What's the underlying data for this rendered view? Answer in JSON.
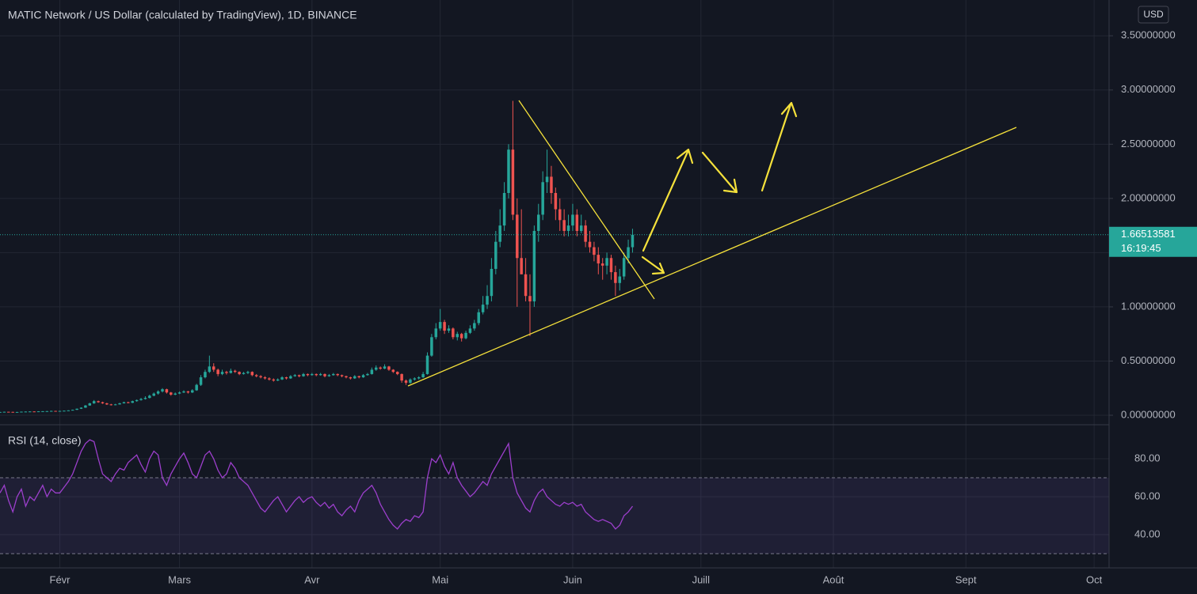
{
  "chart_data": {
    "type": "candlestick",
    "title": "MATIC Network / US Dollar (calculated by TradingView), 1D, BINANCE",
    "currency": "USD",
    "up_color": "#26a69a",
    "down_color": "#ef5350",
    "xlim": [
      0,
      259.5
    ],
    "xticks": [
      {
        "value": 14,
        "label": "Févr"
      },
      {
        "value": 42,
        "label": "Mars"
      },
      {
        "value": 73,
        "label": "Avr"
      },
      {
        "value": 103,
        "label": "Mai"
      },
      {
        "value": 134,
        "label": "Juin"
      },
      {
        "value": 164,
        "label": "Juill"
      },
      {
        "value": 195,
        "label": "Août"
      },
      {
        "value": 226,
        "label": "Sept"
      },
      {
        "value": 256,
        "label": "Oct"
      }
    ],
    "ylim": [
      -0.0875,
      3.83
    ],
    "yticks": [
      {
        "value": 0,
        "label": "0.00000000"
      },
      {
        "value": 0.5,
        "label": "0.50000000"
      },
      {
        "value": 1,
        "label": "1.00000000"
      },
      {
        "value": 1.5,
        "label": "1.50000000"
      },
      {
        "value": 2,
        "label": "2.00000000"
      },
      {
        "value": 2.5,
        "label": "2.50000000"
      },
      {
        "value": 3,
        "label": "3.00000000"
      },
      {
        "value": 3.5,
        "label": "3.50000000"
      }
    ],
    "grid": true,
    "countdown": "16:19:45",
    "candles": [
      [
        0.029,
        0.031,
        0.028,
        0.03
      ],
      [
        0.03,
        0.033,
        0.029,
        0.032
      ],
      [
        0.032,
        0.033,
        0.03,
        0.031
      ],
      [
        0.031,
        0.032,
        0.028,
        0.029
      ],
      [
        0.029,
        0.031,
        0.028,
        0.03
      ],
      [
        0.03,
        0.034,
        0.029,
        0.033
      ],
      [
        0.033,
        0.035,
        0.032,
        0.034
      ],
      [
        0.034,
        0.036,
        0.033,
        0.035
      ],
      [
        0.035,
        0.036,
        0.033,
        0.034
      ],
      [
        0.034,
        0.037,
        0.033,
        0.036
      ],
      [
        0.036,
        0.038,
        0.035,
        0.037
      ],
      [
        0.037,
        0.039,
        0.036,
        0.038
      ],
      [
        0.038,
        0.042,
        0.037,
        0.04
      ],
      [
        0.04,
        0.041,
        0.038,
        0.039
      ],
      [
        0.039,
        0.041,
        0.038,
        0.04
      ],
      [
        0.04,
        0.043,
        0.039,
        0.042
      ],
      [
        0.042,
        0.046,
        0.041,
        0.045
      ],
      [
        0.045,
        0.052,
        0.044,
        0.05
      ],
      [
        0.05,
        0.062,
        0.049,
        0.06
      ],
      [
        0.06,
        0.073,
        0.058,
        0.07
      ],
      [
        0.07,
        0.094,
        0.068,
        0.09
      ],
      [
        0.09,
        0.115,
        0.088,
        0.11
      ],
      [
        0.11,
        0.14,
        0.105,
        0.13
      ],
      [
        0.13,
        0.135,
        0.115,
        0.12
      ],
      [
        0.12,
        0.125,
        0.105,
        0.11
      ],
      [
        0.11,
        0.115,
        0.095,
        0.1
      ],
      [
        0.1,
        0.105,
        0.09,
        0.095
      ],
      [
        0.095,
        0.105,
        0.092,
        0.1
      ],
      [
        0.1,
        0.115,
        0.098,
        0.11
      ],
      [
        0.11,
        0.125,
        0.108,
        0.12
      ],
      [
        0.12,
        0.125,
        0.11,
        0.115
      ],
      [
        0.115,
        0.135,
        0.112,
        0.13
      ],
      [
        0.13,
        0.145,
        0.125,
        0.14
      ],
      [
        0.14,
        0.16,
        0.135,
        0.15
      ],
      [
        0.15,
        0.175,
        0.145,
        0.16
      ],
      [
        0.16,
        0.19,
        0.155,
        0.18
      ],
      [
        0.18,
        0.21,
        0.175,
        0.2
      ],
      [
        0.2,
        0.23,
        0.19,
        0.22
      ],
      [
        0.22,
        0.25,
        0.21,
        0.24
      ],
      [
        0.24,
        0.245,
        0.2,
        0.21
      ],
      [
        0.21,
        0.215,
        0.18,
        0.19
      ],
      [
        0.19,
        0.21,
        0.185,
        0.2
      ],
      [
        0.2,
        0.22,
        0.195,
        0.21
      ],
      [
        0.21,
        0.23,
        0.205,
        0.22
      ],
      [
        0.22,
        0.225,
        0.2,
        0.21
      ],
      [
        0.21,
        0.24,
        0.205,
        0.23
      ],
      [
        0.23,
        0.29,
        0.225,
        0.28
      ],
      [
        0.28,
        0.37,
        0.27,
        0.35
      ],
      [
        0.35,
        0.42,
        0.34,
        0.4
      ],
      [
        0.4,
        0.55,
        0.39,
        0.45
      ],
      [
        0.45,
        0.48,
        0.4,
        0.42
      ],
      [
        0.42,
        0.43,
        0.36,
        0.38
      ],
      [
        0.38,
        0.42,
        0.37,
        0.4
      ],
      [
        0.4,
        0.41,
        0.375,
        0.39
      ],
      [
        0.39,
        0.43,
        0.385,
        0.41
      ],
      [
        0.41,
        0.42,
        0.39,
        0.4
      ],
      [
        0.4,
        0.405,
        0.37,
        0.38
      ],
      [
        0.38,
        0.4,
        0.375,
        0.39
      ],
      [
        0.39,
        0.41,
        0.38,
        0.4
      ],
      [
        0.4,
        0.405,
        0.36,
        0.37
      ],
      [
        0.37,
        0.38,
        0.35,
        0.36
      ],
      [
        0.36,
        0.37,
        0.34,
        0.35
      ],
      [
        0.35,
        0.36,
        0.33,
        0.34
      ],
      [
        0.34,
        0.35,
        0.32,
        0.33
      ],
      [
        0.33,
        0.34,
        0.31,
        0.32
      ],
      [
        0.32,
        0.34,
        0.315,
        0.33
      ],
      [
        0.33,
        0.36,
        0.325,
        0.35
      ],
      [
        0.35,
        0.355,
        0.33,
        0.34
      ],
      [
        0.34,
        0.37,
        0.335,
        0.36
      ],
      [
        0.36,
        0.38,
        0.355,
        0.37
      ],
      [
        0.37,
        0.375,
        0.35,
        0.36
      ],
      [
        0.36,
        0.39,
        0.355,
        0.38
      ],
      [
        0.38,
        0.385,
        0.36,
        0.37
      ],
      [
        0.37,
        0.39,
        0.365,
        0.38
      ],
      [
        0.38,
        0.385,
        0.36,
        0.37
      ],
      [
        0.37,
        0.39,
        0.365,
        0.38
      ],
      [
        0.38,
        0.385,
        0.35,
        0.36
      ],
      [
        0.36,
        0.38,
        0.355,
        0.37
      ],
      [
        0.37,
        0.39,
        0.365,
        0.38
      ],
      [
        0.38,
        0.385,
        0.36,
        0.37
      ],
      [
        0.37,
        0.375,
        0.35,
        0.36
      ],
      [
        0.36,
        0.365,
        0.34,
        0.35
      ],
      [
        0.35,
        0.355,
        0.33,
        0.34
      ],
      [
        0.34,
        0.37,
        0.335,
        0.36
      ],
      [
        0.36,
        0.365,
        0.34,
        0.35
      ],
      [
        0.35,
        0.38,
        0.345,
        0.37
      ],
      [
        0.37,
        0.39,
        0.365,
        0.38
      ],
      [
        0.38,
        0.44,
        0.375,
        0.42
      ],
      [
        0.42,
        0.46,
        0.41,
        0.44
      ],
      [
        0.44,
        0.45,
        0.42,
        0.43
      ],
      [
        0.43,
        0.47,
        0.425,
        0.45
      ],
      [
        0.45,
        0.455,
        0.41,
        0.42
      ],
      [
        0.42,
        0.425,
        0.39,
        0.4
      ],
      [
        0.4,
        0.405,
        0.37,
        0.38
      ],
      [
        0.38,
        0.385,
        0.3,
        0.32
      ],
      [
        0.32,
        0.33,
        0.28,
        0.3
      ],
      [
        0.3,
        0.34,
        0.29,
        0.33
      ],
      [
        0.33,
        0.35,
        0.32,
        0.34
      ],
      [
        0.34,
        0.36,
        0.33,
        0.35
      ],
      [
        0.35,
        0.4,
        0.345,
        0.38
      ],
      [
        0.38,
        0.58,
        0.375,
        0.55
      ],
      [
        0.55,
        0.75,
        0.54,
        0.72
      ],
      [
        0.72,
        0.85,
        0.7,
        0.8
      ],
      [
        0.8,
        0.98,
        0.78,
        0.86
      ],
      [
        0.86,
        0.88,
        0.75,
        0.78
      ],
      [
        0.78,
        0.83,
        0.76,
        0.8
      ],
      [
        0.8,
        0.81,
        0.7,
        0.72
      ],
      [
        0.72,
        0.77,
        0.69,
        0.75
      ],
      [
        0.75,
        0.76,
        0.68,
        0.71
      ],
      [
        0.71,
        0.78,
        0.7,
        0.76
      ],
      [
        0.76,
        0.83,
        0.75,
        0.8
      ],
      [
        0.8,
        0.88,
        0.78,
        0.85
      ],
      [
        0.85,
        0.98,
        0.83,
        0.95
      ],
      [
        0.95,
        1.1,
        0.93,
        1.02
      ],
      [
        1.02,
        1.2,
        0.98,
        1.1
      ],
      [
        1.1,
        1.45,
        1.05,
        1.35
      ],
      [
        1.35,
        1.7,
        1.3,
        1.6
      ],
      [
        1.6,
        1.9,
        1.55,
        1.75
      ],
      [
        1.75,
        2.15,
        1.7,
        2.05
      ],
      [
        2.05,
        2.5,
        2.0,
        2.45
      ],
      [
        2.45,
        2.9,
        1.8,
        1.85
      ],
      [
        1.85,
        2.0,
        1.0,
        1.45
      ],
      [
        1.45,
        1.9,
        1.3,
        1.3
      ],
      [
        1.3,
        1.45,
        1.05,
        1.1
      ],
      [
        1.1,
        1.3,
        0.73,
        1.05
      ],
      [
        1.05,
        1.75,
        1.0,
        1.7
      ],
      [
        1.7,
        1.95,
        1.6,
        1.85
      ],
      [
        1.85,
        2.25,
        1.8,
        2.15
      ],
      [
        2.15,
        2.45,
        2.05,
        2.2
      ],
      [
        2.2,
        2.3,
        1.95,
        2.05
      ],
      [
        2.05,
        2.1,
        1.8,
        1.9
      ],
      [
        1.9,
        2.0,
        1.7,
        1.8
      ],
      [
        1.8,
        1.9,
        1.65,
        1.7
      ],
      [
        1.7,
        1.85,
        1.65,
        1.75
      ],
      [
        1.75,
        1.95,
        1.7,
        1.85
      ],
      [
        1.85,
        1.9,
        1.65,
        1.7
      ],
      [
        1.7,
        1.85,
        1.68,
        1.75
      ],
      [
        1.75,
        1.8,
        1.55,
        1.6
      ],
      [
        1.6,
        1.7,
        1.5,
        1.55
      ],
      [
        1.55,
        1.6,
        1.42,
        1.48
      ],
      [
        1.48,
        1.55,
        1.3,
        1.4
      ],
      [
        1.4,
        1.45,
        1.25,
        1.38
      ],
      [
        1.38,
        1.5,
        1.3,
        1.45
      ],
      [
        1.45,
        1.48,
        1.25,
        1.32
      ],
      [
        1.32,
        1.38,
        1.1,
        1.22
      ],
      [
        1.22,
        1.35,
        1.15,
        1.28
      ],
      [
        1.28,
        1.5,
        1.25,
        1.45
      ],
      [
        1.45,
        1.62,
        1.4,
        1.55
      ],
      [
        1.55,
        1.72,
        1.5,
        1.66513581
      ]
    ],
    "rsi": {
      "label": "RSI (14, close)",
      "color": "#9c3fcc",
      "ylim": [
        22.5,
        97.9
      ],
      "yticks": [
        {
          "value": 40,
          "label": "40.00"
        },
        {
          "value": 60,
          "label": "60.00"
        },
        {
          "value": 80,
          "label": "80.00"
        }
      ],
      "bands": [
        30,
        70
      ],
      "values": [
        62,
        66,
        58,
        52,
        60,
        64,
        55,
        60,
        58,
        62,
        66,
        60,
        64,
        62,
        62,
        65,
        68,
        72,
        78,
        84,
        88,
        90,
        89,
        80,
        72,
        70,
        68,
        72,
        75,
        74,
        78,
        80,
        82,
        77,
        73,
        80,
        84,
        82,
        70,
        66,
        72,
        76,
        80,
        83,
        78,
        72,
        70,
        76,
        82,
        84,
        80,
        74,
        70,
        72,
        78,
        75,
        70,
        68,
        66,
        62,
        58,
        54,
        52,
        55,
        58,
        60,
        56,
        52,
        55,
        58,
        60,
        57,
        59,
        60,
        57,
        55,
        57,
        54,
        56,
        52,
        50,
        53,
        55,
        52,
        58,
        62,
        64,
        66,
        62,
        56,
        52,
        48,
        45,
        43,
        46,
        48,
        47,
        50,
        49,
        52,
        70,
        80,
        78,
        82,
        76,
        72,
        78,
        70,
        66,
        63,
        60,
        62,
        65,
        68,
        66,
        72,
        76,
        80,
        84,
        88,
        70,
        62,
        58,
        54,
        52,
        58,
        62,
        64,
        60,
        58,
        56,
        55,
        57,
        56,
        57,
        55,
        56,
        52,
        50,
        48,
        47,
        48,
        47,
        46,
        43,
        45,
        50,
        52,
        55
      ]
    }
  }
}
